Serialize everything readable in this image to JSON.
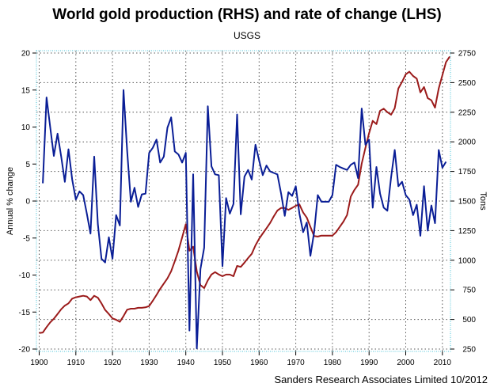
{
  "chart_data": {
    "type": "line",
    "title": "World gold production (RHS) and rate of change (LHS)",
    "subtitle": "USGS",
    "credit": "Sanders Research Associates Limited 10/2012",
    "xlabel": "",
    "ylabel_left": "Annual % change",
    "ylabel_right": "Tons",
    "xlim": [
      1900,
      2012
    ],
    "ylim_left": [
      -20,
      20
    ],
    "ylim_right": [
      250,
      2750
    ],
    "x_ticks": [
      1900,
      1910,
      1920,
      1930,
      1940,
      1950,
      1960,
      1970,
      1980,
      1990,
      2000,
      2010
    ],
    "y_ticks_left": [
      -20,
      -15,
      -10,
      -5,
      0,
      5,
      10,
      15,
      20
    ],
    "y_ticks_right": [
      250,
      500,
      750,
      1000,
      1250,
      1500,
      1750,
      2000,
      2250,
      2500,
      2750
    ],
    "grid": true,
    "legend": "none",
    "series": [
      {
        "name": "World gold production (Tons)",
        "axis": "right",
        "color": "#9b1b1b",
        "x": [
          1900,
          1901,
          1902,
          1903,
          1904,
          1905,
          1906,
          1907,
          1908,
          1909,
          1910,
          1911,
          1912,
          1913,
          1914,
          1915,
          1916,
          1917,
          1918,
          1919,
          1920,
          1921,
          1922,
          1923,
          1924,
          1925,
          1926,
          1927,
          1928,
          1929,
          1930,
          1931,
          1932,
          1933,
          1934,
          1935,
          1936,
          1937,
          1938,
          1939,
          1940,
          1941,
          1942,
          1943,
          1944,
          1945,
          1946,
          1947,
          1948,
          1949,
          1950,
          1951,
          1952,
          1953,
          1954,
          1955,
          1956,
          1957,
          1958,
          1959,
          1960,
          1961,
          1962,
          1963,
          1964,
          1965,
          1966,
          1967,
          1968,
          1969,
          1970,
          1971,
          1972,
          1973,
          1974,
          1975,
          1976,
          1977,
          1978,
          1979,
          1980,
          1981,
          1982,
          1983,
          1984,
          1985,
          1986,
          1987,
          1988,
          1989,
          1990,
          1991,
          1992,
          1993,
          1994,
          1995,
          1996,
          1997,
          1998,
          1999,
          2000,
          2001,
          2002,
          2003,
          2004,
          2005,
          2006,
          2007,
          2008,
          2009,
          2010,
          2011,
          2012
        ],
        "values": [
          386,
          390,
          435,
          475,
          506,
          546,
          586,
          617,
          636,
          676,
          687,
          694,
          700,
          694,
          663,
          700,
          684,
          636,
          580,
          546,
          509,
          497,
          480,
          528,
          582,
          591,
          591,
          598,
          598,
          602,
          613,
          658,
          707,
          758,
          803,
          847,
          907,
          992,
          1081,
          1193,
          1304,
          1081,
          1114,
          905,
          790,
          765,
          830,
          880,
          900,
          880,
          865,
          879,
          879,
          865,
          952,
          944,
          980,
          1019,
          1054,
          1126,
          1181,
          1226,
          1270,
          1315,
          1370,
          1420,
          1442,
          1442,
          1426,
          1442,
          1460,
          1471,
          1404,
          1360,
          1282,
          1204,
          1200,
          1208,
          1208,
          1208,
          1208,
          1237,
          1282,
          1326,
          1382,
          1538,
          1594,
          1638,
          1816,
          1950,
          2073,
          2177,
          2150,
          2262,
          2280,
          2251,
          2229,
          2284,
          2451,
          2507,
          2570,
          2592,
          2556,
          2534,
          2418,
          2463,
          2369,
          2351,
          2289,
          2451,
          2563,
          2674,
          2720
        ]
      },
      {
        "name": "Annual % change",
        "axis": "left",
        "color": "#0a1e96",
        "x": [
          1901,
          1902,
          1903,
          1904,
          1905,
          1906,
          1907,
          1908,
          1909,
          1910,
          1911,
          1912,
          1913,
          1914,
          1915,
          1916,
          1917,
          1918,
          1919,
          1920,
          1921,
          1922,
          1923,
          1924,
          1925,
          1926,
          1927,
          1928,
          1929,
          1930,
          1931,
          1932,
          1933,
          1934,
          1935,
          1936,
          1937,
          1938,
          1939,
          1940,
          1941,
          1942,
          1943,
          1944,
          1945,
          1946,
          1947,
          1948,
          1949,
          1950,
          1951,
          1952,
          1953,
          1954,
          1955,
          1956,
          1957,
          1958,
          1959,
          1960,
          1961,
          1962,
          1963,
          1964,
          1965,
          1966,
          1967,
          1968,
          1969,
          1970,
          1971,
          1972,
          1973,
          1974,
          1975,
          1976,
          1977,
          1978,
          1979,
          1980,
          1981,
          1982,
          1983,
          1984,
          1985,
          1986,
          1987,
          1988,
          1989,
          1990,
          1991,
          1992,
          1993,
          1994,
          1995,
          1996,
          1997,
          1998,
          1999,
          2000,
          2001,
          2002,
          2003,
          2004,
          2005,
          2006,
          2007,
          2008,
          2009,
          2010,
          2011
        ],
        "values": [
          2.4,
          14.0,
          10.0,
          6.1,
          9.1,
          6.0,
          2.6,
          7.0,
          2.9,
          0.2,
          1.3,
          0.8,
          -1.7,
          -4.4,
          6.0,
          -3.1,
          -7.8,
          -8.3,
          -4.9,
          -7.8,
          -1.9,
          -3.3,
          15.0,
          6.8,
          -0.1,
          1.8,
          -0.8,
          0.9,
          1.0,
          6.5,
          7.2,
          8.3,
          5.2,
          6.0,
          9.9,
          11.3,
          6.7,
          6.3,
          5.2,
          6.5,
          -17.5,
          3.6,
          -19.9,
          -9.2,
          -6.3,
          12.8,
          4.7,
          3.6,
          3.5,
          -8.8,
          0.4,
          -1.7,
          -0.4,
          11.7,
          -1.8,
          3.3,
          4.2,
          2.9,
          7.6,
          5.5,
          3.5,
          4.8,
          4.0,
          3.8,
          3.6,
          1.0,
          -2.0,
          1.2,
          0.7,
          2.0,
          -1.7,
          -4.2,
          -2.9,
          -7.4,
          -4.2,
          0.8,
          -0.1,
          -0.1,
          -0.1,
          0.8,
          4.9,
          4.6,
          4.4,
          4.2,
          4.9,
          5.2,
          3.1,
          12.5,
          7.6,
          8.3,
          -0.9,
          4.6,
          1.0,
          -0.9,
          -1.3,
          3.2,
          6.9,
          2.0,
          2.6,
          0.8,
          0.2,
          -1.9,
          -0.5,
          -4.7,
          2.0,
          -4.0,
          -0.6,
          -3.0,
          6.9,
          4.5,
          5.3
        ]
      }
    ]
  }
}
